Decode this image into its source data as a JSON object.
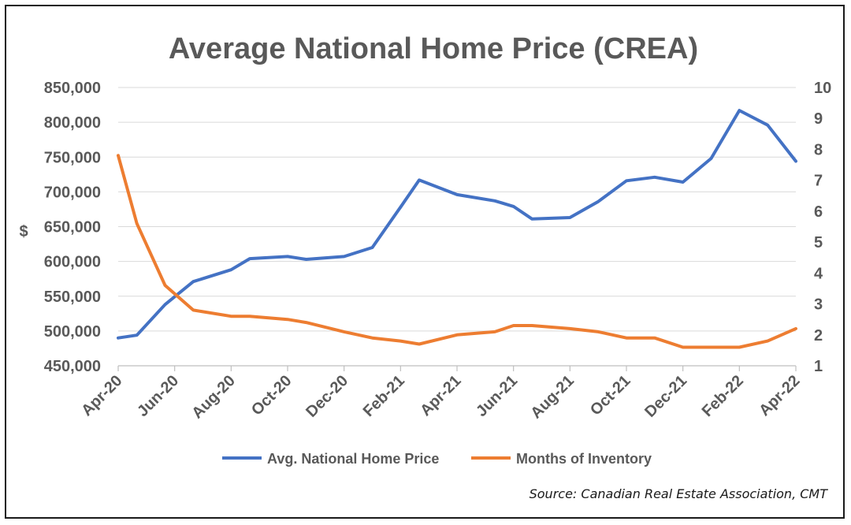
{
  "chart_data": {
    "type": "line",
    "title": "Average National Home Price (CREA)",
    "ylabel": "$",
    "source": "Source: Canadian Real Estate Association, CMT",
    "x_tick_labels": [
      "Apr-20",
      "Jun-20",
      "Aug-20",
      "Oct-20",
      "Dec-20",
      "Feb-21",
      "Apr-21",
      "Jun-21",
      "Aug-21",
      "Oct-21",
      "Dec-21",
      "Feb-22",
      "Apr-22"
    ],
    "y_left": {
      "ticks": [
        "450,000",
        "500,000",
        "550,000",
        "600,000",
        "650,000",
        "700,000",
        "750,000",
        "800,000",
        "850,000"
      ],
      "ylim": [
        450000,
        850000
      ]
    },
    "y_right": {
      "ticks": [
        "1",
        "2",
        "3",
        "4",
        "5",
        "6",
        "7",
        "8",
        "9",
        "10"
      ],
      "ylim": [
        1,
        10
      ]
    },
    "grid": true,
    "legend_position": "bottom",
    "series": [
      {
        "name": "Avg. National Home Price",
        "axis": "left",
        "color": "#4472C4",
        "points": [
          [
            0,
            490000
          ],
          [
            0.33,
            494000
          ],
          [
            0.83,
            538000
          ],
          [
            1.33,
            571000
          ],
          [
            2,
            588000
          ],
          [
            2.33,
            604000
          ],
          [
            3,
            607000
          ],
          [
            3.33,
            603000
          ],
          [
            4,
            607000
          ],
          [
            4.5,
            620000
          ],
          [
            5,
            678000
          ],
          [
            5.33,
            717000
          ],
          [
            6,
            696000
          ],
          [
            6.67,
            687000
          ],
          [
            7,
            679000
          ],
          [
            7.33,
            661000
          ],
          [
            8,
            663000
          ],
          [
            8.5,
            686000
          ],
          [
            9,
            716000
          ],
          [
            9.5,
            721000
          ],
          [
            10,
            714000
          ],
          [
            10.5,
            748000
          ],
          [
            11,
            817000
          ],
          [
            11.5,
            796000
          ],
          [
            12,
            744000
          ]
        ]
      },
      {
        "name": "Months of Inventory",
        "axis": "right",
        "color": "#ED7D31",
        "points": [
          [
            0,
            7.8
          ],
          [
            0.33,
            5.6
          ],
          [
            0.83,
            3.6
          ],
          [
            1.33,
            2.8
          ],
          [
            2,
            2.6
          ],
          [
            2.33,
            2.6
          ],
          [
            3,
            2.5
          ],
          [
            3.33,
            2.4
          ],
          [
            4,
            2.1
          ],
          [
            4.5,
            1.9
          ],
          [
            5,
            1.8
          ],
          [
            5.33,
            1.7
          ],
          [
            6,
            2.0
          ],
          [
            6.67,
            2.1
          ],
          [
            7,
            2.3
          ],
          [
            7.33,
            2.3
          ],
          [
            8,
            2.2
          ],
          [
            8.5,
            2.1
          ],
          [
            9,
            1.9
          ],
          [
            9.5,
            1.9
          ],
          [
            10,
            1.6
          ],
          [
            10.5,
            1.6
          ],
          [
            11,
            1.6
          ],
          [
            11.5,
            1.8
          ],
          [
            12,
            2.2
          ]
        ]
      }
    ]
  }
}
